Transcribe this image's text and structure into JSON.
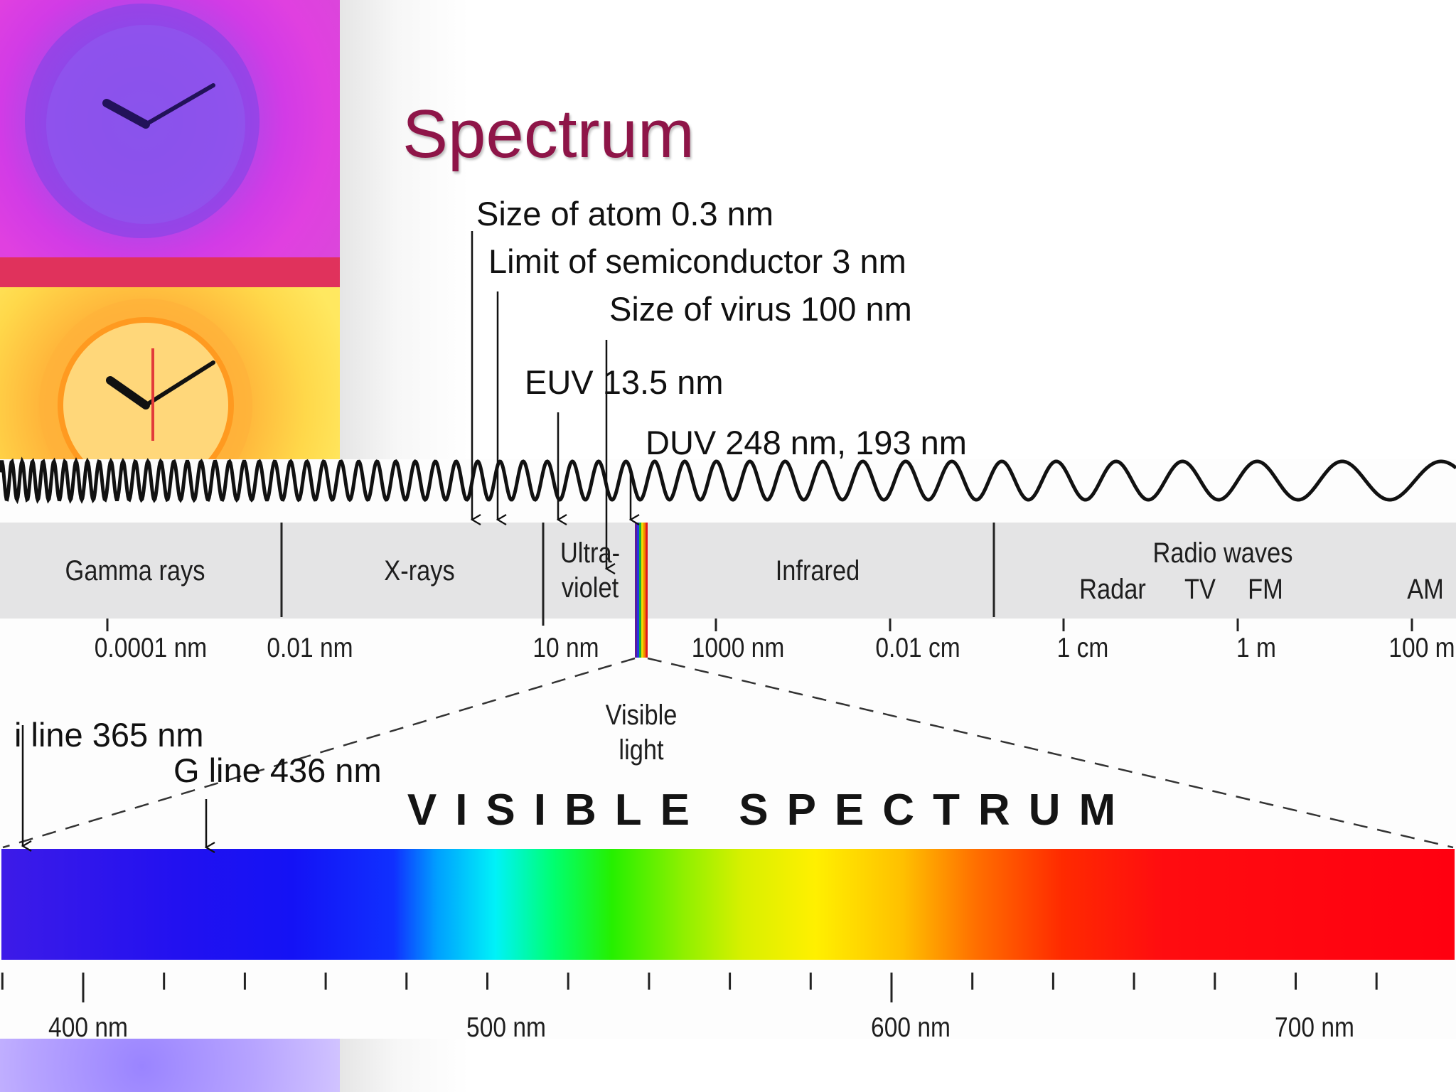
{
  "title": "Spectrum",
  "annotations": {
    "atom": "Size of atom 0.3 nm",
    "semi": "Limit of semiconductor 3 nm",
    "virus": "Size of virus 100 nm",
    "euv": "EUV 13.5 nm",
    "duv": "DUV 248 nm, 193 nm",
    "iline": "i line 365 nm",
    "gline": "G line 436 nm"
  },
  "bands": {
    "gamma": "Gamma rays",
    "xrays": "X-rays",
    "uv": [
      "Ultra-",
      "violet"
    ],
    "infrared": "Infrared",
    "radio": "Radio waves",
    "radar": "Radar",
    "tv": "TV",
    "fm": "FM",
    "am": "AM"
  },
  "em_ticks": [
    "0.0001 nm",
    "0.01 nm",
    "10 nm",
    "1000 nm",
    "0.01 cm",
    "1 cm",
    "1 m",
    "100 m"
  ],
  "visible_label": [
    "Visible",
    "light"
  ],
  "visible_spectrum_heading": "VISIBLE SPECTRUM",
  "visible_ticks": [
    "400 nm",
    "500 nm",
    "600 nm",
    "700 nm"
  ],
  "colors": {
    "title": "#8e1548",
    "band": "#e4e4e5"
  }
}
